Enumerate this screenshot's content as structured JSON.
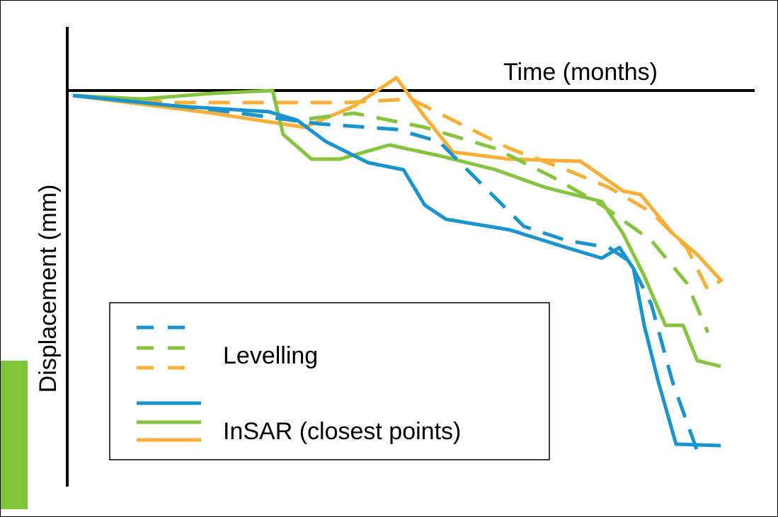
{
  "axes": {
    "x_label": "Time (months)",
    "y_label": "Displacement (mm)"
  },
  "legend": {
    "items": [
      "Levelling",
      "InSAR (closest points)"
    ]
  }
}
